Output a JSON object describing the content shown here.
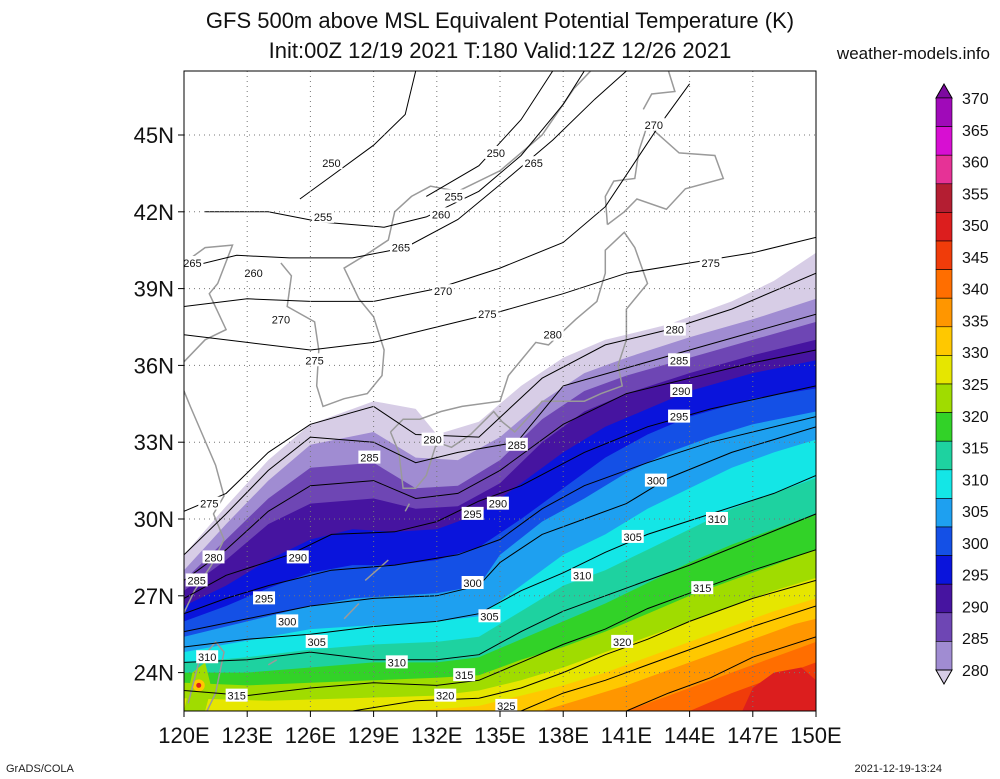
{
  "title_line1": "GFS 500m above MSL Equivalent Potential Temperature (K)",
  "title_line2": "Init:00Z 12/19 2021 T:180 Valid:12Z 12/26 2021",
  "site": "weather-models.info",
  "footer_left": "GrADS/COLA",
  "footer_right": "2021-12-19-13:24",
  "map": {
    "lon_min": 120,
    "lon_max": 150,
    "lat_min": 22.5,
    "lat_max": 47.5,
    "lon_ticks": [
      "120E",
      "123E",
      "126E",
      "129E",
      "132E",
      "135E",
      "138E",
      "141E",
      "144E",
      "147E",
      "150E"
    ],
    "lat_ticks": [
      "24N",
      "27N",
      "30N",
      "33N",
      "36N",
      "39N",
      "42N",
      "45N"
    ]
  },
  "colorbar": {
    "levels": [
      "370",
      "365",
      "360",
      "355",
      "350",
      "345",
      "340",
      "335",
      "330",
      "325",
      "320",
      "315",
      "310",
      "305",
      "300",
      "295",
      "290",
      "285",
      "280"
    ],
    "colors": [
      "#7d0aa0",
      "#a00ab9",
      "#d70fd2",
      "#e63296",
      "#b41e32",
      "#dc1e1e",
      "#f03c0a",
      "#ff6e00",
      "#ff9600",
      "#ffc800",
      "#e6e600",
      "#a0dc00",
      "#32d228",
      "#1ed2a0",
      "#14e6e6",
      "#1ea0f0",
      "#1450e6",
      "#0a14dc",
      "#4614a0",
      "#6e46b4",
      "#a08cd2",
      "#d7cde6"
    ]
  },
  "contour_labels": [
    {
      "v": "250",
      "lon": 127,
      "lat": 43.9
    },
    {
      "v": "250",
      "lon": 134.8,
      "lat": 44.3
    },
    {
      "v": "255",
      "lon": 126.6,
      "lat": 41.8
    },
    {
      "v": "255",
      "lon": 132.8,
      "lat": 42.6
    },
    {
      "v": "260",
      "lon": 132.2,
      "lat": 41.9
    },
    {
      "v": "265",
      "lon": 136.6,
      "lat": 43.9
    },
    {
      "v": "270",
      "lon": 142.3,
      "lat": 45.4
    },
    {
      "v": "265",
      "lon": 120.4,
      "lat": 40
    },
    {
      "v": "260",
      "lon": 123.3,
      "lat": 39.6
    },
    {
      "v": "265",
      "lon": 130.3,
      "lat": 40.6
    },
    {
      "v": "270",
      "lon": 132.3,
      "lat": 38.9
    },
    {
      "v": "275",
      "lon": 145,
      "lat": 40
    },
    {
      "v": "270",
      "lon": 124.6,
      "lat": 37.8
    },
    {
      "v": "275",
      "lon": 134.4,
      "lat": 38
    },
    {
      "v": "275",
      "lon": 126.2,
      "lat": 36.2
    },
    {
      "v": "280",
      "lon": 137.5,
      "lat": 37.2
    },
    {
      "v": "280",
      "lon": 143.3,
      "lat": 37.4
    },
    {
      "v": "285",
      "lon": 143.5,
      "lat": 36.2
    },
    {
      "v": "280",
      "lon": 131.8,
      "lat": 33.1
    },
    {
      "v": "285",
      "lon": 128.8,
      "lat": 32.4
    },
    {
      "v": "285",
      "lon": 135.8,
      "lat": 32.9
    },
    {
      "v": "290",
      "lon": 143.6,
      "lat": 35
    },
    {
      "v": "295",
      "lon": 143.5,
      "lat": 34
    },
    {
      "v": "290",
      "lon": 134.9,
      "lat": 30.6
    },
    {
      "v": "295",
      "lon": 133.7,
      "lat": 30.2
    },
    {
      "v": "275",
      "lon": 121.2,
      "lat": 30.6
    },
    {
      "v": "300",
      "lon": 142.4,
      "lat": 31.5
    },
    {
      "v": "310",
      "lon": 145.3,
      "lat": 30
    },
    {
      "v": "305",
      "lon": 141.3,
      "lat": 29.3
    },
    {
      "v": "280",
      "lon": 121.4,
      "lat": 28.5
    },
    {
      "v": "285",
      "lon": 120.6,
      "lat": 27.6
    },
    {
      "v": "290",
      "lon": 125.4,
      "lat": 28.5
    },
    {
      "v": "310",
      "lon": 138.9,
      "lat": 27.8
    },
    {
      "v": "300",
      "lon": 133.7,
      "lat": 27.5
    },
    {
      "v": "295",
      "lon": 123.8,
      "lat": 26.9
    },
    {
      "v": "315",
      "lon": 144.6,
      "lat": 27.3
    },
    {
      "v": "305",
      "lon": 134.5,
      "lat": 26.2
    },
    {
      "v": "300",
      "lon": 124.9,
      "lat": 26
    },
    {
      "v": "305",
      "lon": 126.3,
      "lat": 25.2
    },
    {
      "v": "320",
      "lon": 140.8,
      "lat": 25.2
    },
    {
      "v": "310",
      "lon": 121.1,
      "lat": 24.6
    },
    {
      "v": "310",
      "lon": 130.1,
      "lat": 24.4
    },
    {
      "v": "315",
      "lon": 133.3,
      "lat": 23.9
    },
    {
      "v": "315",
      "lon": 122.5,
      "lat": 23.1
    },
    {
      "v": "320",
      "lon": 132.4,
      "lat": 23.1
    },
    {
      "v": "325",
      "lon": 135.3,
      "lat": 22.7
    }
  ]
}
